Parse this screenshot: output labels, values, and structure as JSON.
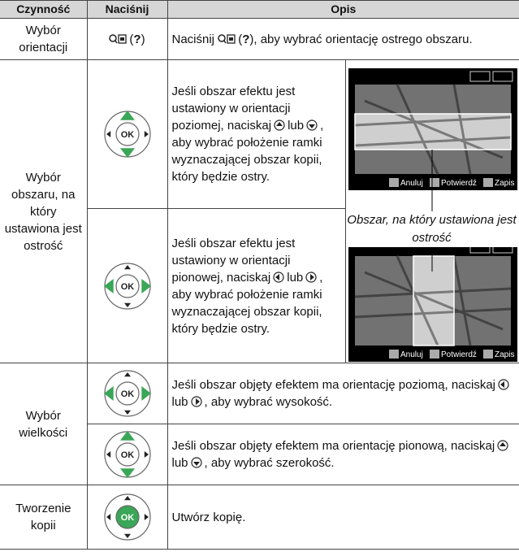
{
  "table": {
    "headers": [
      "Czynność",
      "Naciśnij",
      "Opis"
    ],
    "rows": [
      {
        "action": "Wybór orientacji",
        "press": [
          "(",
          "?",
          ")"
        ],
        "description": [
          "Naciśnij",
          "(",
          "?",
          "), aby wybrać orientację ostrego obszaru."
        ]
      },
      {
        "action": "Wybór obszaru, na który ustawiona jest ostrość",
        "descriptions": [
          [
            "Jeśli obszar efektu jest ustawiony w orientacji poziomej, naciskaj",
            "lub",
            ", aby wybrać położenie ramki wyznaczającej obszar kopii, który będzie ostry."
          ],
          [
            "Jeśli obszar efektu jest ustawiony w orientacji pionowej, naciskaj",
            "lub",
            ", aby wybrać położenie ramki wyznaczającej obszar kopii, który będzie ostry."
          ]
        ],
        "caption": "Obszar, na który ustawiona jest ostrość",
        "screen_labels": [
          "Anuluj",
          "Potwierdź",
          "Zapis"
        ]
      },
      {
        "action": "Wybór wielkości",
        "descriptions": [
          [
            "Jeśli obszar objęty efektem ma orientację poziomą, naciskaj",
            "lub",
            ", aby wybrać wysokość."
          ],
          [
            "Jeśli obszar objęty efektem ma orientację pionową, naciskaj",
            "lub",
            ", aby wybrać szerokość."
          ]
        ]
      },
      {
        "action": "Tworzenie kopii",
        "description": [
          "Utwórz kopię."
        ]
      }
    ]
  },
  "icons": {
    "ok": "OK"
  }
}
